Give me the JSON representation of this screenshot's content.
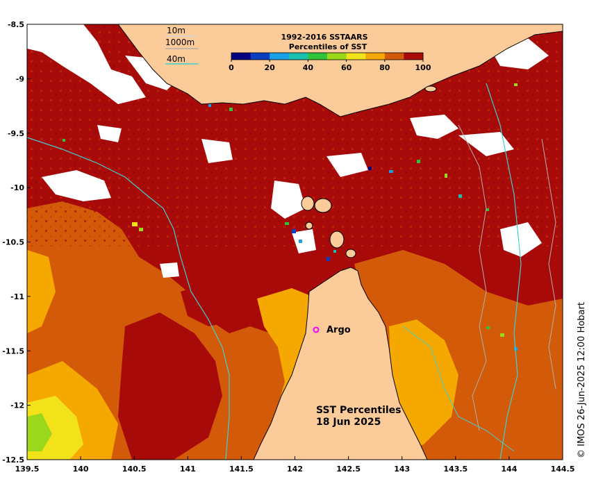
{
  "legend": {
    "title_line1": "1992-2016 SSTAARS",
    "title_line2": "Percentiles of SST",
    "colors": [
      "#000080",
      "#0a3fbf",
      "#1aa0e6",
      "#18c0b0",
      "#2fc43a",
      "#9bd81c",
      "#f2e21a",
      "#f5a800",
      "#d35a08",
      "#a80a0a"
    ],
    "tick_labels": [
      "0",
      "20",
      "40",
      "60",
      "80",
      "100"
    ]
  },
  "depth_legend": {
    "labels": [
      "10m",
      "1000m",
      "40m"
    ],
    "colors": [
      "#d8d8d8",
      "#b0b0b0",
      "#40d0d0"
    ]
  },
  "map": {
    "title_line1": "SST Percentiles",
    "title_line2": "18 Jun 2025",
    "argo_label": "Argo",
    "argo_color": "#ff00ff",
    "land_color": "#fbcb9a",
    "credit": "© IMOS 26-Jun-2025 12:00 Hobart"
  },
  "axes": {
    "x_ticks": [
      "139.5",
      "140",
      "140.5",
      "141",
      "141.5",
      "142",
      "142.5",
      "143",
      "143.5",
      "144",
      "144.5"
    ],
    "y_ticks": [
      "-8.5",
      "-9",
      "-9.5",
      "-10",
      "-10.5",
      "-11",
      "-11.5",
      "-12",
      "-12.5"
    ],
    "xlim": [
      139.5,
      144.5
    ],
    "ylim": [
      -12.5,
      -8.5
    ]
  }
}
